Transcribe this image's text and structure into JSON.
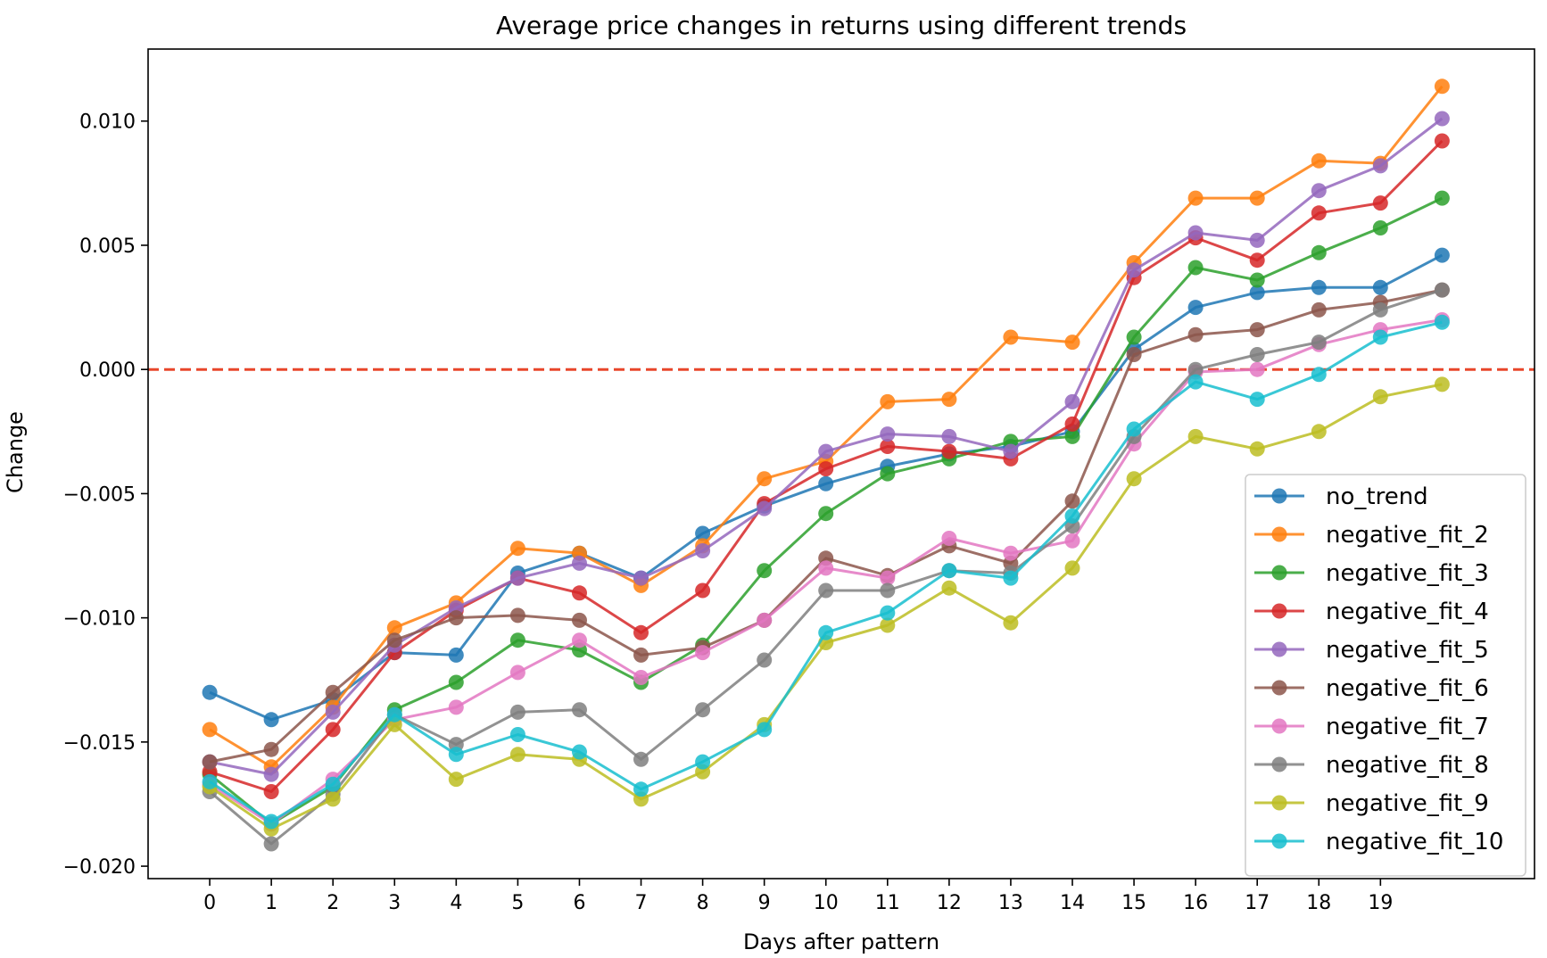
{
  "chart_data": {
    "type": "line",
    "title": "Average price changes in returns using different trends",
    "xlabel": "Days after pattern",
    "ylabel": "Change",
    "x": [
      0,
      1,
      2,
      3,
      4,
      5,
      6,
      7,
      8,
      9,
      10,
      11,
      12,
      13,
      14,
      15,
      16,
      17,
      18,
      19,
      20
    ],
    "xticks": [
      "0",
      "1",
      "2",
      "3",
      "4",
      "5",
      "6",
      "7",
      "8",
      "9",
      "10",
      "11",
      "12",
      "13",
      "14",
      "15",
      "16",
      "17",
      "18",
      "19"
    ],
    "yticks": [
      -0.02,
      -0.015,
      -0.01,
      -0.005,
      0.0,
      0.005,
      0.01
    ],
    "ytick_labels": [
      "−0.020",
      "−0.015",
      "−0.010",
      "−0.005",
      "0.000",
      "0.005",
      "0.010"
    ],
    "xlim": [
      -1,
      21.5
    ],
    "ylim": [
      -0.0205,
      0.0129
    ],
    "grid": false,
    "legend_position": "lower-right",
    "reference_line": {
      "y": 0.0,
      "style": "dashed",
      "color": "#e8462a"
    },
    "series": [
      {
        "name": "no_trend",
        "color": "#1f77b4",
        "values": [
          -0.013,
          -0.0141,
          -0.0133,
          -0.0114,
          -0.0115,
          -0.0082,
          -0.0074,
          -0.0084,
          -0.0066,
          -0.0055,
          -0.0046,
          -0.0039,
          -0.0034,
          -0.0031,
          -0.0025,
          0.0008,
          0.0025,
          0.0031,
          0.0033,
          0.0033,
          0.0046
        ]
      },
      {
        "name": "negative_fit_2",
        "color": "#ff7f0e",
        "values": [
          -0.0145,
          -0.016,
          -0.0136,
          -0.0104,
          -0.0094,
          -0.0072,
          -0.0074,
          -0.0087,
          -0.0071,
          -0.0044,
          -0.0037,
          -0.0013,
          -0.0012,
          0.0013,
          0.0011,
          0.0043,
          0.0069,
          0.0069,
          0.0084,
          0.0083,
          0.0114
        ]
      },
      {
        "name": "negative_fit_3",
        "color": "#2ca02c",
        "values": [
          -0.0163,
          -0.0183,
          -0.0168,
          -0.0137,
          -0.0126,
          -0.0109,
          -0.0113,
          -0.0126,
          -0.0111,
          -0.0081,
          -0.0058,
          -0.0042,
          -0.0036,
          -0.0029,
          -0.0027,
          0.0013,
          0.0041,
          0.0036,
          0.0047,
          0.0057,
          0.0069
        ]
      },
      {
        "name": "negative_fit_4",
        "color": "#d62728",
        "values": [
          -0.0162,
          -0.017,
          -0.0145,
          -0.0114,
          -0.0097,
          -0.0084,
          -0.009,
          -0.0106,
          -0.0089,
          -0.0054,
          -0.004,
          -0.0031,
          -0.0033,
          -0.0036,
          -0.0022,
          0.0037,
          0.0053,
          0.0044,
          0.0063,
          0.0067,
          0.0092
        ]
      },
      {
        "name": "negative_fit_5",
        "color": "#9467bd",
        "values": [
          -0.0158,
          -0.0163,
          -0.0138,
          -0.0111,
          -0.0096,
          -0.0084,
          -0.0078,
          -0.0084,
          -0.0073,
          -0.0056,
          -0.0033,
          -0.0026,
          -0.0027,
          -0.0033,
          -0.0013,
          0.004,
          0.0055,
          0.0052,
          0.0072,
          0.0082,
          0.0101
        ]
      },
      {
        "name": "negative_fit_6",
        "color": "#8c564b",
        "values": [
          -0.0158,
          -0.0153,
          -0.013,
          -0.0109,
          -0.01,
          -0.0099,
          -0.0101,
          -0.0115,
          -0.0112,
          -0.0101,
          -0.0076,
          -0.0083,
          -0.0071,
          -0.0078,
          -0.0053,
          0.0006,
          0.0014,
          0.0016,
          0.0024,
          0.0027,
          0.0032
        ]
      },
      {
        "name": "negative_fit_7",
        "color": "#e377c2",
        "values": [
          -0.0167,
          -0.0183,
          -0.0165,
          -0.0141,
          -0.0136,
          -0.0122,
          -0.0109,
          -0.0124,
          -0.0114,
          -0.0101,
          -0.008,
          -0.0084,
          -0.0068,
          -0.0074,
          -0.0069,
          -0.003,
          -0.0001,
          0.0,
          0.001,
          0.0016,
          0.002
        ]
      },
      {
        "name": "negative_fit_8",
        "color": "#7f7f7f",
        "values": [
          -0.017,
          -0.0191,
          -0.0171,
          -0.0139,
          -0.0151,
          -0.0138,
          -0.0137,
          -0.0157,
          -0.0137,
          -0.0117,
          -0.0089,
          -0.0089,
          -0.0081,
          -0.0082,
          -0.0063,
          -0.0027,
          0.0,
          0.0006,
          0.0011,
          0.0024,
          0.0032
        ]
      },
      {
        "name": "negative_fit_9",
        "color": "#bcbd22",
        "values": [
          -0.0168,
          -0.0185,
          -0.0173,
          -0.0143,
          -0.0165,
          -0.0155,
          -0.0157,
          -0.0173,
          -0.0162,
          -0.0143,
          -0.011,
          -0.0103,
          -0.0088,
          -0.0102,
          -0.008,
          -0.0044,
          -0.0027,
          -0.0032,
          -0.0025,
          -0.0011,
          -0.0006
        ]
      },
      {
        "name": "negative_fit_10",
        "color": "#17becf",
        "values": [
          -0.0166,
          -0.0182,
          -0.0167,
          -0.0139,
          -0.0155,
          -0.0147,
          -0.0154,
          -0.0169,
          -0.0158,
          -0.0145,
          -0.0106,
          -0.0098,
          -0.0081,
          -0.0084,
          -0.0059,
          -0.0024,
          -0.0005,
          -0.0012,
          -0.0002,
          0.0013,
          0.0019
        ]
      }
    ]
  }
}
